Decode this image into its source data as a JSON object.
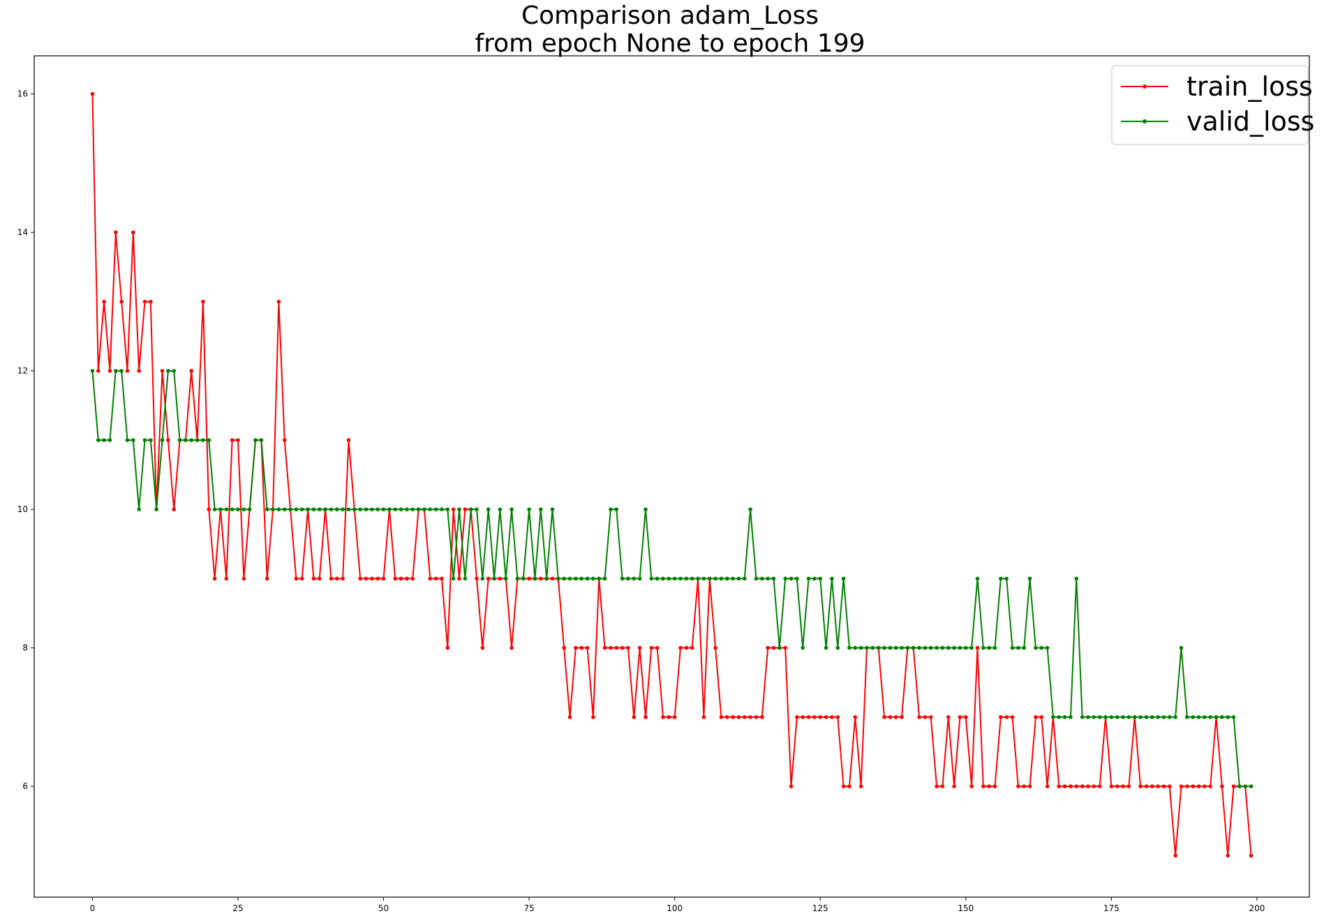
{
  "chart_data": {
    "type": "line",
    "title_lines": [
      "Comparison adam_Loss",
      "from epoch None to epoch 199"
    ],
    "xlabel": "",
    "ylabel": "",
    "xlim": [
      -10,
      209
    ],
    "ylim": [
      4.4,
      16.55
    ],
    "xticks": [
      0,
      25,
      50,
      75,
      100,
      125,
      150,
      175,
      200
    ],
    "yticks": [
      6,
      8,
      10,
      12,
      14,
      16
    ],
    "grid": false,
    "legend_position": "top-right",
    "series": [
      {
        "name": "train_loss",
        "color": "#ff0000",
        "marker": "circle",
        "values": [
          16,
          12,
          13,
          12,
          14,
          13,
          12,
          14,
          12,
          13,
          13,
          10,
          12,
          11,
          10,
          11,
          11,
          12,
          11,
          13,
          10,
          9,
          10,
          9,
          11,
          11,
          9,
          10,
          11,
          11,
          9,
          10,
          13,
          11,
          10,
          9,
          9,
          10,
          9,
          9,
          10,
          9,
          9,
          9,
          11,
          10,
          9,
          9,
          9,
          9,
          9,
          10,
          9,
          9,
          9,
          9,
          10,
          10,
          9,
          9,
          9,
          8,
          10,
          9,
          10,
          10,
          9,
          8,
          9,
          9,
          9,
          9,
          8,
          9,
          9,
          9,
          9,
          9,
          9,
          9,
          9,
          8,
          7,
          8,
          8,
          8,
          7,
          9,
          8,
          8,
          8,
          8,
          8,
          7,
          8,
          7,
          8,
          8,
          7,
          7,
          7,
          8,
          8,
          8,
          9,
          7,
          9,
          8,
          7,
          7,
          7,
          7,
          7,
          7,
          7,
          7,
          8,
          8,
          8,
          8,
          6,
          7,
          7,
          7,
          7,
          7,
          7,
          7,
          7,
          6,
          6,
          7,
          6,
          8,
          8,
          8,
          7,
          7,
          7,
          7,
          8,
          8,
          7,
          7,
          7,
          6,
          6,
          7,
          6,
          7,
          7,
          6,
          8,
          6,
          6,
          6,
          7,
          7,
          7,
          6,
          6,
          6,
          7,
          7,
          6,
          7,
          6,
          6,
          6,
          6,
          6,
          6,
          6,
          6,
          7,
          6,
          6,
          6,
          6,
          7,
          6,
          6,
          6,
          6,
          6,
          6,
          5,
          6,
          6,
          6,
          6,
          6,
          6,
          7,
          6,
          5,
          6,
          6,
          6,
          5
        ]
      },
      {
        "name": "valid_loss",
        "color": "#008000",
        "marker": "circle",
        "values": [
          12,
          11,
          11,
          11,
          12,
          12,
          11,
          11,
          10,
          11,
          11,
          10,
          11,
          12,
          12,
          11,
          11,
          11,
          11,
          11,
          11,
          10,
          10,
          10,
          10,
          10,
          10,
          10,
          11,
          11,
          10,
          10,
          10,
          10,
          10,
          10,
          10,
          10,
          10,
          10,
          10,
          10,
          10,
          10,
          10,
          10,
          10,
          10,
          10,
          10,
          10,
          10,
          10,
          10,
          10,
          10,
          10,
          10,
          10,
          10,
          10,
          10,
          9,
          10,
          9,
          10,
          10,
          9,
          10,
          9,
          10,
          9,
          10,
          9,
          9,
          10,
          9,
          10,
          9,
          10,
          9,
          9,
          9,
          9,
          9,
          9,
          9,
          9,
          9,
          10,
          10,
          9,
          9,
          9,
          9,
          10,
          9,
          9,
          9,
          9,
          9,
          9,
          9,
          9,
          9,
          9,
          9,
          9,
          9,
          9,
          9,
          9,
          9,
          10,
          9,
          9,
          9,
          9,
          8,
          9,
          9,
          9,
          8,
          9,
          9,
          9,
          8,
          9,
          8,
          9,
          8,
          8,
          8,
          8,
          8,
          8,
          8,
          8,
          8,
          8,
          8,
          8,
          8,
          8,
          8,
          8,
          8,
          8,
          8,
          8,
          8,
          8,
          9,
          8,
          8,
          8,
          9,
          9,
          8,
          8,
          8,
          9,
          8,
          8,
          8,
          7,
          7,
          7,
          7,
          9,
          7,
          7,
          7,
          7,
          7,
          7,
          7,
          7,
          7,
          7,
          7,
          7,
          7,
          7,
          7,
          7,
          7,
          8,
          7,
          7,
          7,
          7,
          7,
          7,
          7,
          7,
          7,
          6,
          6,
          6
        ]
      }
    ]
  }
}
